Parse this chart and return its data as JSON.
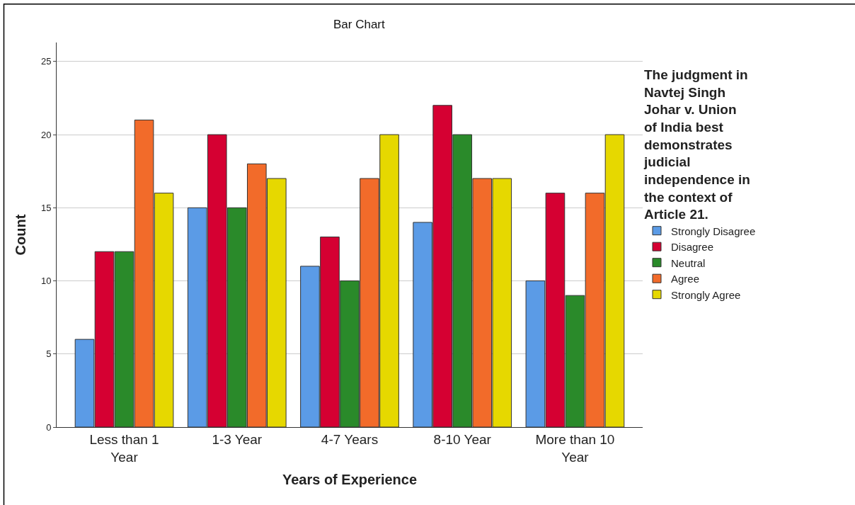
{
  "chart_data": {
    "type": "bar",
    "title": "Bar Chart",
    "xlabel": "Years of Experience",
    "ylabel": "Count",
    "legend_title": "The judgment in Navtej Singh Johar v. Union of India best demonstrates judicial independence in the context of Article 21.",
    "categories": [
      "Less than 1 Year",
      "1-3 Year",
      "4-7 Years",
      "8-10 Year",
      "More than 10 Year"
    ],
    "series": [
      {
        "name": "Strongly Disagree",
        "color": "#5b9be6",
        "values": [
          6,
          15,
          11,
          14,
          10
        ]
      },
      {
        "name": "Disagree",
        "color": "#d50032",
        "values": [
          12,
          20,
          13,
          22,
          16
        ]
      },
      {
        "name": "Neutral",
        "color": "#2a8a2a",
        "values": [
          12,
          15,
          10,
          20,
          9
        ]
      },
      {
        "name": "Agree",
        "color": "#f26b2a",
        "values": [
          21,
          18,
          17,
          17,
          16
        ]
      },
      {
        "name": "Strongly Agree",
        "color": "#e6d800",
        "values": [
          16,
          17,
          20,
          17,
          20
        ]
      }
    ],
    "ylim": [
      0,
      26.3
    ],
    "yticks": [
      0,
      5,
      10,
      15,
      20,
      25
    ],
    "grid": "y",
    "legend": "right"
  }
}
